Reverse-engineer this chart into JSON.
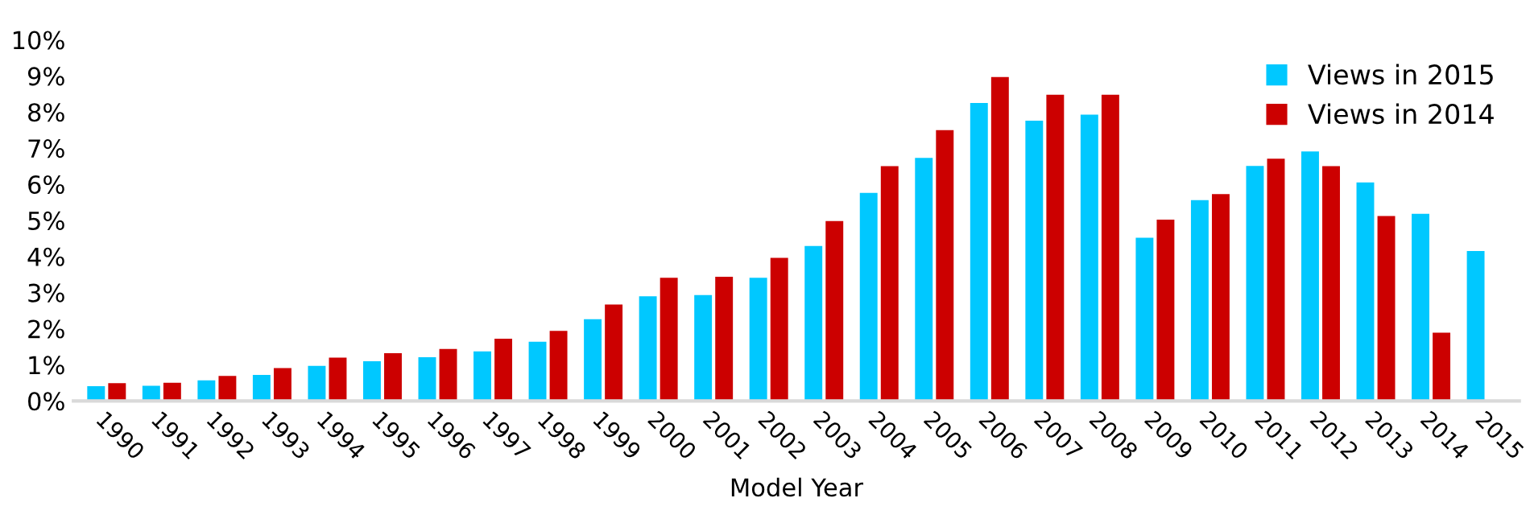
{
  "chart_data": {
    "type": "bar",
    "xlabel": "Model Year",
    "categories": [
      "1990",
      "1991",
      "1992",
      "1993",
      "1994",
      "1995",
      "1996",
      "1997",
      "1998",
      "1999",
      "2000",
      "2001",
      "2002",
      "2003",
      "2004",
      "2005",
      "2006",
      "2007",
      "2008",
      "2009",
      "2010",
      "2011",
      "2012",
      "2013",
      "2014",
      "2015"
    ],
    "series": [
      {
        "name": "Views in 2015",
        "color": "#00c8ff",
        "values": [
          0.41,
          0.42,
          0.57,
          0.72,
          0.97,
          1.1,
          1.21,
          1.37,
          1.64,
          2.26,
          2.9,
          2.93,
          3.41,
          4.29,
          5.76,
          6.73,
          8.25,
          7.76,
          7.93,
          4.52,
          5.56,
          6.51,
          6.91,
          6.05,
          5.18,
          4.15
        ]
      },
      {
        "name": "Views in 2014",
        "color": "#cc0000",
        "values": [
          0.49,
          0.5,
          0.69,
          0.91,
          1.2,
          1.32,
          1.44,
          1.72,
          1.94,
          2.67,
          3.41,
          3.44,
          3.96,
          4.98,
          6.5,
          7.5,
          8.97,
          8.48,
          8.48,
          5.02,
          5.73,
          6.71,
          6.5,
          5.12,
          1.89,
          null
        ]
      }
    ],
    "ylim": [
      0,
      10
    ],
    "yticks": [
      {
        "value": 0,
        "label": "0%"
      },
      {
        "value": 1,
        "label": "1%"
      },
      {
        "value": 2,
        "label": "2%"
      },
      {
        "value": 3,
        "label": "3%"
      },
      {
        "value": 4,
        "label": "4%"
      },
      {
        "value": 5,
        "label": "5%"
      },
      {
        "value": 6,
        "label": "6%"
      },
      {
        "value": 7,
        "label": "7%"
      },
      {
        "value": 8,
        "label": "8%"
      },
      {
        "value": 9,
        "label": "9%"
      },
      {
        "value": 10,
        "label": "10%"
      }
    ],
    "grid": false,
    "legend": "top right"
  }
}
